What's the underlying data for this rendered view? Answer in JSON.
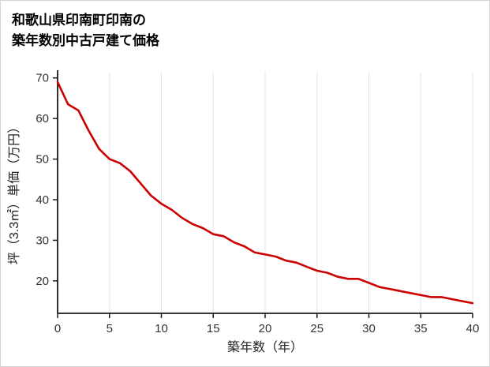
{
  "title": {
    "line1": "和歌山県印南町印南の",
    "line2": "築年数別中古戸建て価格"
  },
  "chart_data": {
    "type": "line",
    "title": "和歌山県印南町印南の築年数別中古戸建て価格",
    "xlabel": "築年数（年）",
    "ylabel": "坪（3.3㎡）単価（万円）",
    "x": [
      0,
      1,
      2,
      3,
      4,
      5,
      6,
      7,
      8,
      9,
      10,
      11,
      12,
      13,
      14,
      15,
      16,
      17,
      18,
      19,
      20,
      21,
      22,
      23,
      24,
      25,
      26,
      27,
      28,
      29,
      30,
      31,
      32,
      33,
      34,
      35,
      36,
      37,
      38,
      39,
      40
    ],
    "y": [
      69,
      63.5,
      62,
      57,
      52.5,
      50,
      49,
      47,
      44,
      41,
      39,
      37.5,
      35.5,
      34,
      33,
      31.5,
      31,
      29.5,
      28.5,
      27,
      26.5,
      26,
      25,
      24.5,
      23.5,
      22.5,
      22,
      21,
      20.5,
      20.5,
      19.5,
      18.5,
      18,
      17.5,
      17,
      16.5,
      16,
      16,
      15.5,
      15,
      14.5
    ],
    "xlim": [
      0,
      40
    ],
    "ylim": [
      12,
      71.5
    ],
    "xticks": [
      0,
      5,
      10,
      15,
      20,
      25,
      30,
      35,
      40
    ],
    "yticks": [
      20,
      30,
      40,
      50,
      60,
      70
    ],
    "line_color": "#cc0000",
    "axis_color": "#1a1a1a",
    "grid_color": "#e6e6e6",
    "tick_label_color": "#333333",
    "grid": "vertical",
    "legend": "none"
  }
}
